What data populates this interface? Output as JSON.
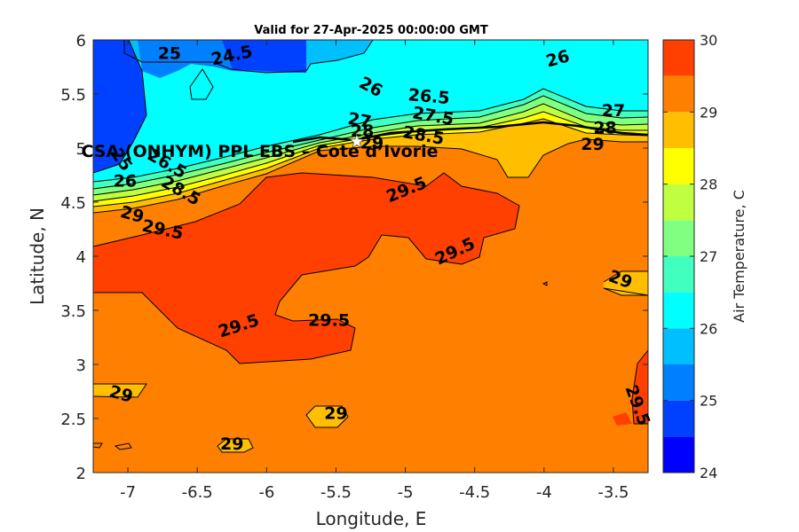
{
  "chart_data": {
    "type": "contour",
    "title": "Valid for 27-Apr-2025 00:00:00 GMT",
    "xlabel": "Longitude, E",
    "ylabel": "Latitude, N",
    "xlim": [
      -7.25,
      -3.25
    ],
    "ylim": [
      2,
      6
    ],
    "xticks": [
      -7,
      -6.5,
      -6,
      -5.5,
      -5,
      -4.5,
      -4,
      -3.5
    ],
    "xtick_labels": [
      "-7",
      "-6.5",
      "-6",
      "-5.5",
      "-5",
      "-4.5",
      "-4",
      "-3.5"
    ],
    "yticks": [
      2,
      2.5,
      3,
      3.5,
      4,
      4.5,
      5,
      5.5,
      6
    ],
    "ytick_labels": [
      "2",
      "2.5",
      "3",
      "3.5",
      "4",
      "4.5",
      "5",
      "5.5",
      "6"
    ],
    "colorbar": {
      "label": "Air Temperature, C",
      "range": [
        24,
        30
      ],
      "step": 0.5,
      "ticks": [
        24,
        25,
        26,
        27,
        28,
        29,
        30
      ],
      "tick_labels": [
        "24",
        "25",
        "26",
        "27",
        "28",
        "29",
        "30"
      ],
      "colors": [
        "#0000ff",
        "#0040ff",
        "#0080ff",
        "#00bfff",
        "#00ffff",
        "#40ffbf",
        "#80ff80",
        "#bfff40",
        "#ffff00",
        "#ffbf00",
        "#ff8000",
        "#ff4000"
      ]
    },
    "contour_labels": [
      {
        "text": "25",
        "lon": -6.7,
        "lat": 5.87,
        "angle": 0
      },
      {
        "text": "24.5",
        "lon": -6.25,
        "lat": 5.85,
        "angle": 12
      },
      {
        "text": "26",
        "lon": -3.9,
        "lat": 5.82,
        "angle": 15
      },
      {
        "text": "26",
        "lon": -5.25,
        "lat": 5.56,
        "angle": -28
      },
      {
        "text": "26.5",
        "lon": -4.83,
        "lat": 5.47,
        "angle": -5
      },
      {
        "text": "27.5",
        "lon": -4.8,
        "lat": 5.29,
        "angle": -10
      },
      {
        "text": "27",
        "lon": -5.33,
        "lat": 5.25,
        "angle": -10
      },
      {
        "text": "28",
        "lon": -5.31,
        "lat": 5.15,
        "angle": 0
      },
      {
        "text": "28.5",
        "lon": -4.87,
        "lat": 5.11,
        "angle": -10
      },
      {
        "text": "27",
        "lon": -3.5,
        "lat": 5.34,
        "angle": 0
      },
      {
        "text": "28",
        "lon": -3.56,
        "lat": 5.18,
        "angle": 0
      },
      {
        "text": "29",
        "lon": -3.65,
        "lat": 5.03,
        "angle": 0
      },
      {
        "text": "29",
        "lon": -5.24,
        "lat": 5.04,
        "angle": 0
      },
      {
        "text": "25",
        "lon": -7.05,
        "lat": 4.89,
        "angle": -55
      },
      {
        "text": "26",
        "lon": -7.02,
        "lat": 4.69,
        "angle": 0
      },
      {
        "text": "26.5",
        "lon": -6.72,
        "lat": 4.85,
        "angle": -30
      },
      {
        "text": "28.5",
        "lon": -6.62,
        "lat": 4.6,
        "angle": -30
      },
      {
        "text": "29",
        "lon": -6.97,
        "lat": 4.38,
        "angle": -15
      },
      {
        "text": "29.5",
        "lon": -6.75,
        "lat": 4.24,
        "angle": -12
      },
      {
        "text": "29.5",
        "lon": -4.99,
        "lat": 4.61,
        "angle": 22
      },
      {
        "text": "29.5",
        "lon": -4.64,
        "lat": 4.04,
        "angle": 25
      },
      {
        "text": "29",
        "lon": -3.45,
        "lat": 3.78,
        "angle": -20
      },
      {
        "text": "29.5",
        "lon": -6.2,
        "lat": 3.35,
        "angle": 18
      },
      {
        "text": "29.5",
        "lon": -5.55,
        "lat": 3.4,
        "angle": 0
      },
      {
        "text": "29",
        "lon": -7.05,
        "lat": 2.72,
        "angle": -15
      },
      {
        "text": "29",
        "lon": -5.5,
        "lat": 2.54,
        "angle": 0
      },
      {
        "text": "29",
        "lon": -6.25,
        "lat": 2.26,
        "angle": 0
      },
      {
        "text": "29.5",
        "lon": -3.33,
        "lat": 2.62,
        "angle": -70
      }
    ],
    "site": {
      "label": "CSA (ONHYM) PPL EBS  – Cote d’Ivorie",
      "lon": -5.35,
      "lat": 5.06,
      "marker": "white-star"
    }
  }
}
